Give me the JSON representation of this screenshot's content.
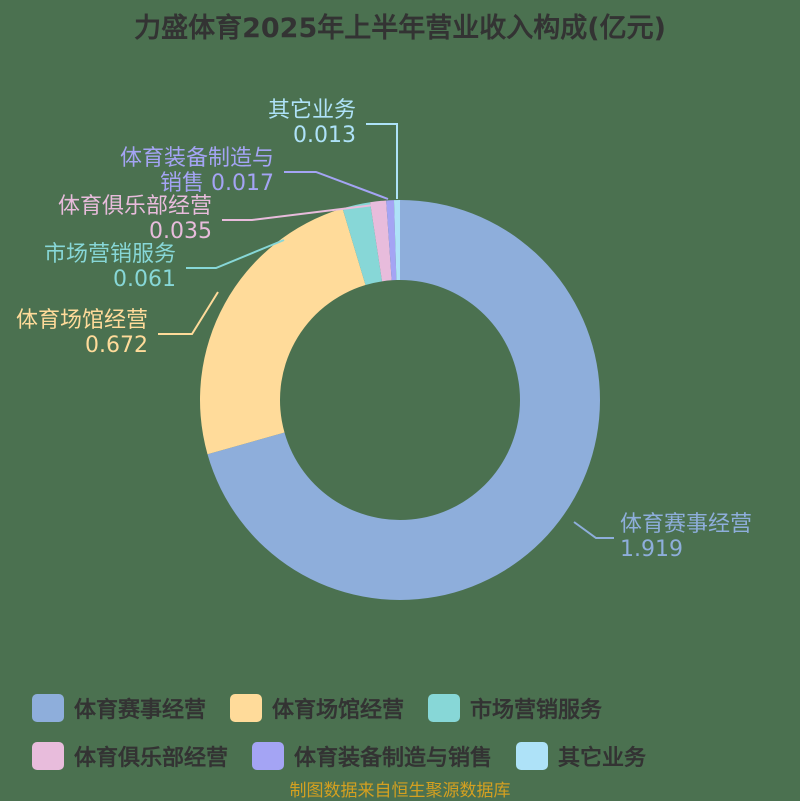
{
  "title": "力盛体育2025年上半年营业收入构成(亿元)",
  "source": "制图数据来自恒生聚源数据库",
  "chart_data": {
    "type": "pie",
    "variant": "donut",
    "title": "力盛体育2025年上半年营业收入构成(亿元)",
    "unit": "亿元",
    "categories": [
      "体育赛事经营",
      "体育场馆经营",
      "市场营销服务",
      "体育俱乐部经营",
      "体育装备制造与销售",
      "其它业务"
    ],
    "values": [
      1.919,
      0.672,
      0.061,
      0.035,
      0.017,
      0.013
    ],
    "colors": [
      "#8eaedb",
      "#ffdb9a",
      "#87d7d7",
      "#e8bcdc",
      "#a4a4f4",
      "#aee2f8"
    ],
    "legend_position": "bottom"
  },
  "labels": [
    {
      "name": "体育赛事经营",
      "value": "1.919"
    },
    {
      "name": "体育场馆经营",
      "value": "0.672"
    },
    {
      "name": "市场营销服务",
      "value": "0.061"
    },
    {
      "name": "体育俱乐部经营",
      "value": "0.035"
    },
    {
      "name": "体育装备制造与",
      "name2": "销售",
      "value": "0.017"
    },
    {
      "name": "其它业务",
      "value": "0.013"
    }
  ],
  "legend": [
    {
      "label": "体育赛事经营"
    },
    {
      "label": "体育场馆经营"
    },
    {
      "label": "市场营销服务"
    },
    {
      "label": "体育俱乐部经营"
    },
    {
      "label": "体育装备制造与销售"
    },
    {
      "label": "其它业务"
    }
  ]
}
